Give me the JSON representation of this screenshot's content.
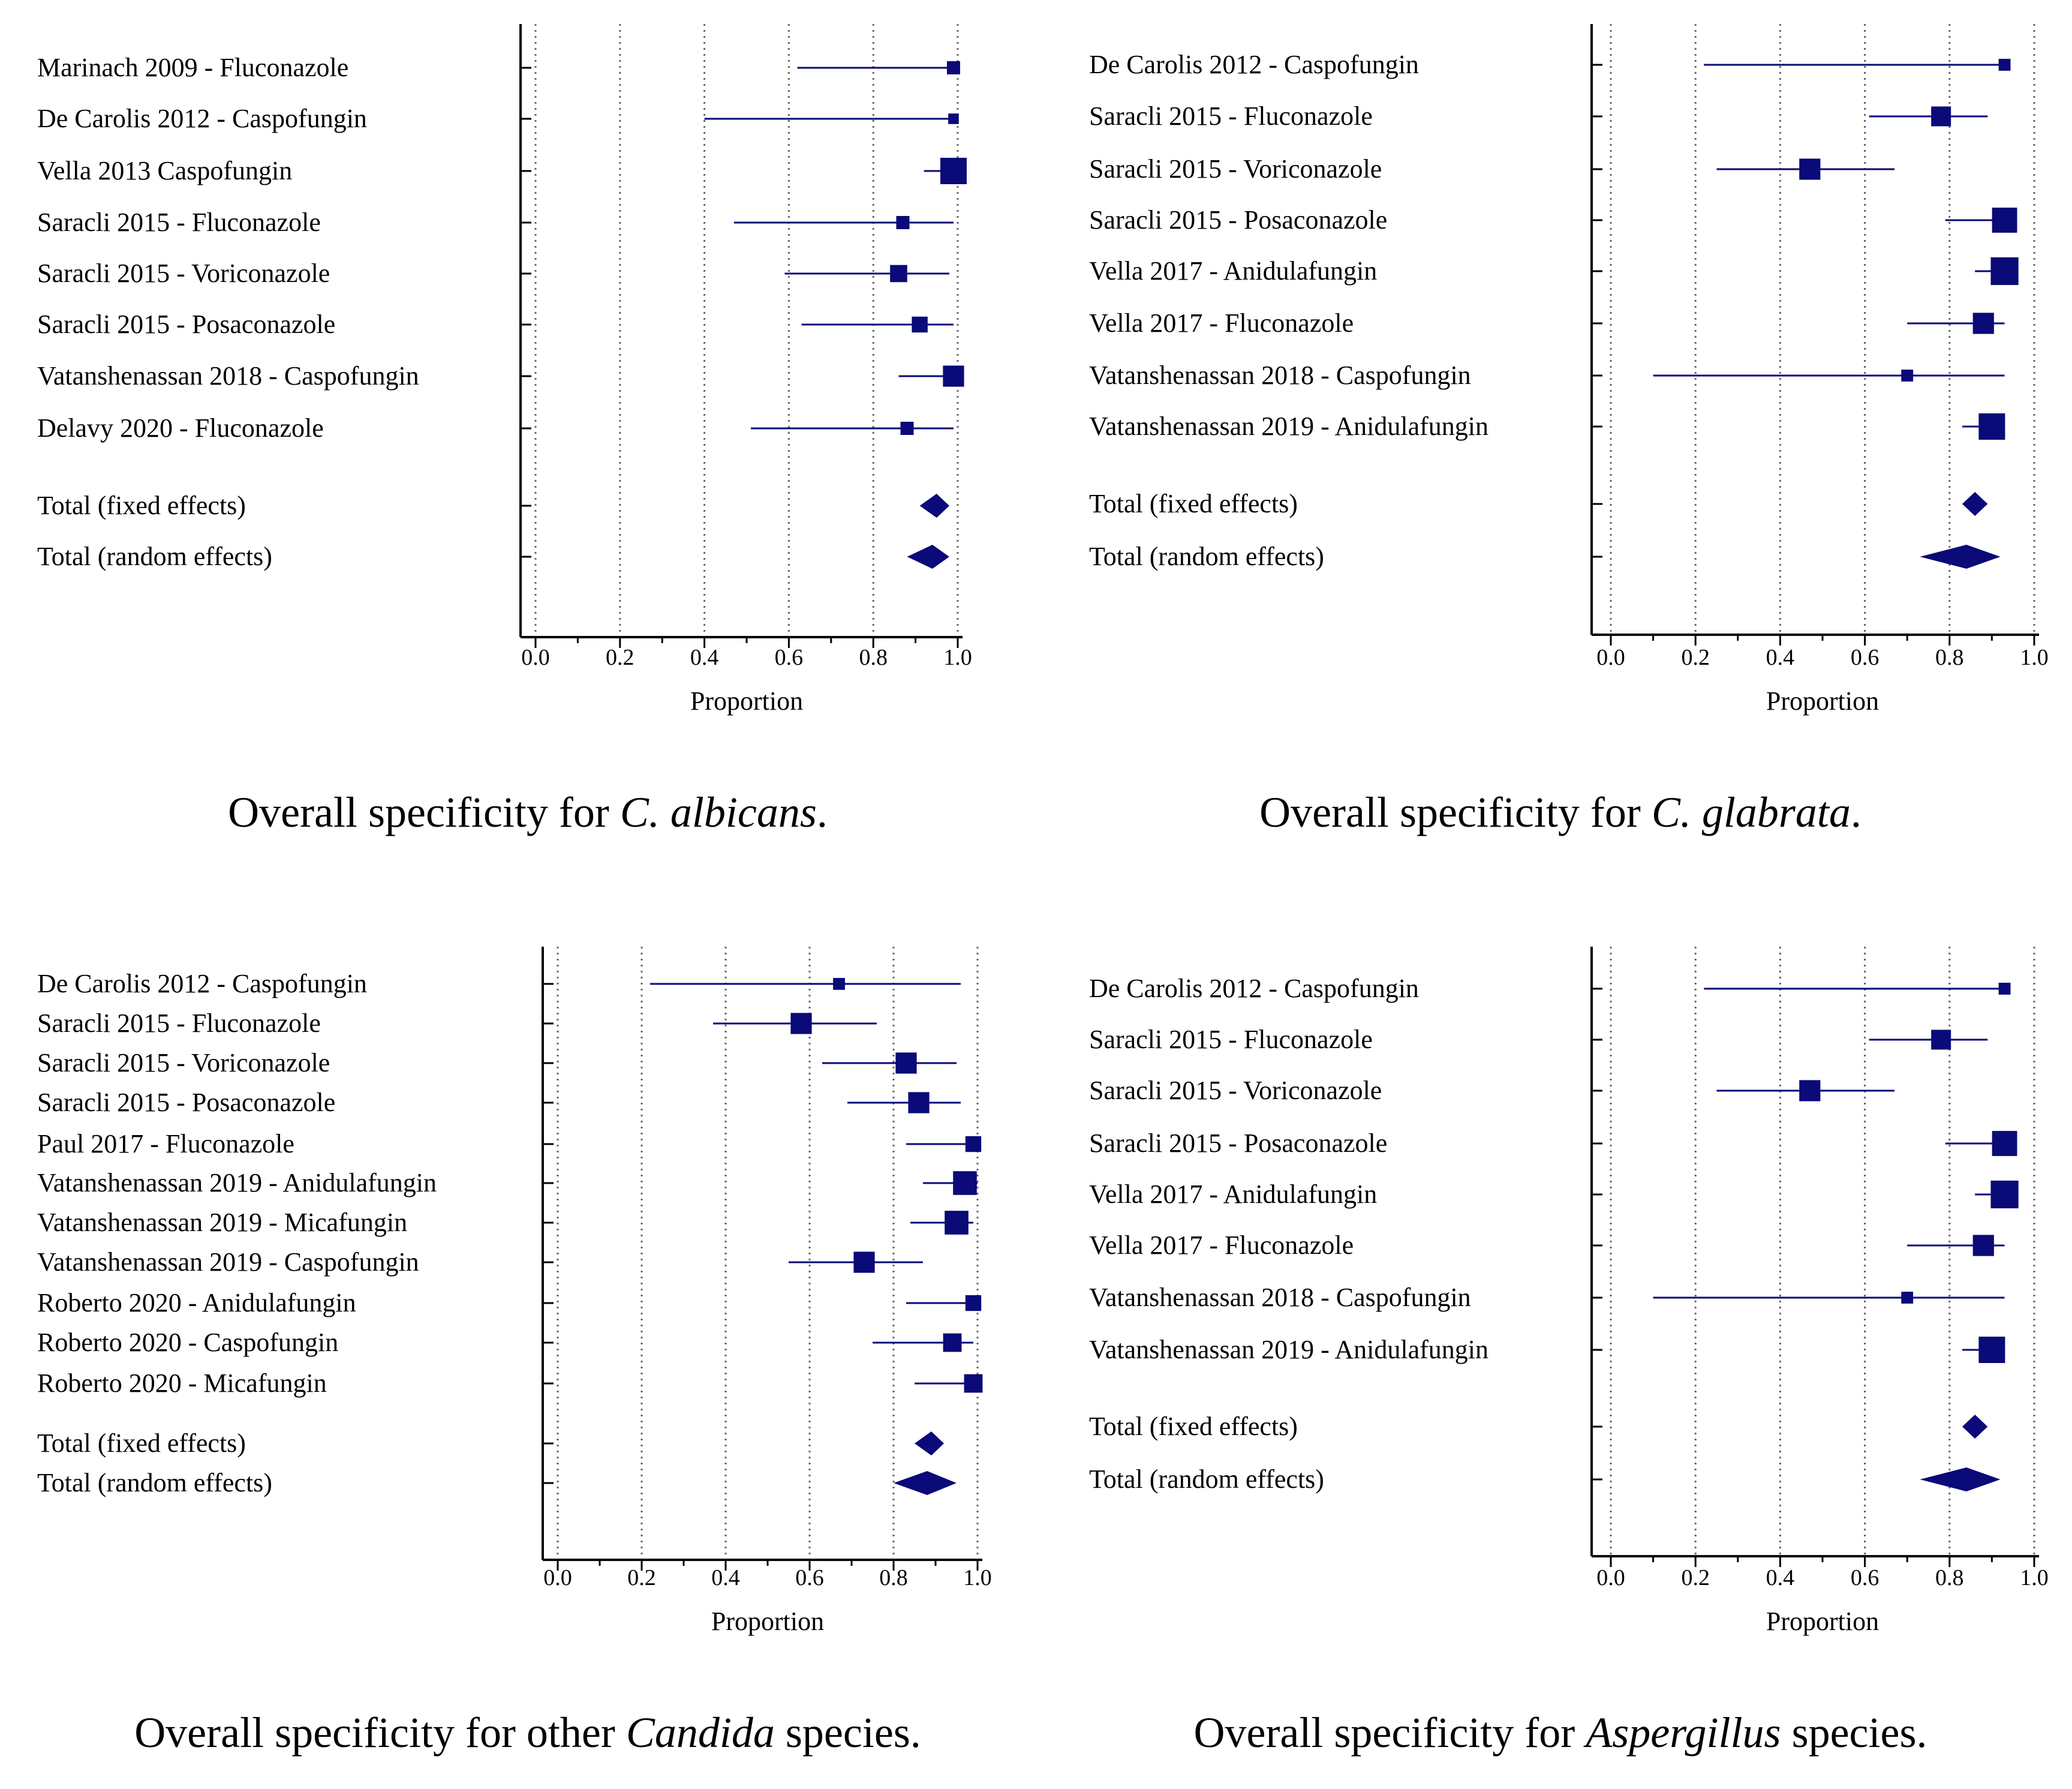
{
  "chart_data": [
    {
      "type": "forest",
      "xlabel": "Proportion",
      "xlim": [
        0.0,
        1.0
      ],
      "x_ticks": [
        "0.0",
        "0.2",
        "0.4",
        "0.6",
        "0.8",
        "1.0"
      ],
      "grid": "vertical dotted",
      "caption": {
        "prefix": "Overall specificity for ",
        "italic": "C. albicans",
        "suffix": "."
      },
      "studies": [
        {
          "label": "Marinach 2009 - Fluconazole",
          "est": 0.99,
          "lo": 0.62,
          "hi": 1.0,
          "weight": 1.0
        },
        {
          "label": "De Carolis 2012 - Caspofungin",
          "est": 0.99,
          "lo": 0.4,
          "hi": 1.0,
          "weight": 0.8
        },
        {
          "label": "Vella 2013 Caspofungin",
          "est": 0.99,
          "lo": 0.92,
          "hi": 1.0,
          "weight": 2.0
        },
        {
          "label": "Saracli 2015 - Fluconazole",
          "est": 0.87,
          "lo": 0.47,
          "hi": 0.99,
          "weight": 1.0
        },
        {
          "label": "Saracli 2015 - Voriconazole",
          "est": 0.86,
          "lo": 0.59,
          "hi": 0.98,
          "weight": 1.3
        },
        {
          "label": "Saracli 2015 - Posaconazole",
          "est": 0.91,
          "lo": 0.63,
          "hi": 0.99,
          "weight": 1.2
        },
        {
          "label": "Vatanshenassan 2018 - Caspofungin",
          "est": 0.99,
          "lo": 0.86,
          "hi": 1.0,
          "weight": 1.6
        },
        {
          "label": "Delavy 2020 - Fluconazole",
          "est": 0.88,
          "lo": 0.51,
          "hi": 0.99,
          "weight": 1.0
        }
      ],
      "totals": [
        {
          "label": "Total (fixed effects)",
          "est": 0.95,
          "lo": 0.91,
          "hi": 0.98
        },
        {
          "label": "Total (random effects)",
          "est": 0.94,
          "lo": 0.88,
          "hi": 0.98
        }
      ]
    },
    {
      "type": "forest",
      "xlabel": "Proportion",
      "xlim": [
        0.0,
        1.0
      ],
      "x_ticks": [
        "0.0",
        "0.2",
        "0.4",
        "0.6",
        "0.8",
        "1.0"
      ],
      "grid": "vertical dotted",
      "caption": {
        "prefix": "Overall specificity for ",
        "italic": "C. glabrata",
        "suffix": "."
      },
      "studies": [
        {
          "label": "De Carolis 2012 - Caspofungin",
          "est": 0.93,
          "lo": 0.22,
          "hi": 0.93,
          "weight": 0.9
        },
        {
          "label": "Saracli 2015 - Fluconazole",
          "est": 0.78,
          "lo": 0.61,
          "hi": 0.89,
          "weight": 1.5
        },
        {
          "label": "Saracli 2015 - Voriconazole",
          "est": 0.47,
          "lo": 0.25,
          "hi": 0.67,
          "weight": 1.6
        },
        {
          "label": "Saracli 2015 - Posaconazole",
          "est": 0.93,
          "lo": 0.79,
          "hi": 0.93,
          "weight": 1.9
        },
        {
          "label": "Vella 2017 - Anidulafungin",
          "est": 0.93,
          "lo": 0.86,
          "hi": 0.93,
          "weight": 2.1
        },
        {
          "label": "Vella 2017 - Fluconazole",
          "est": 0.88,
          "lo": 0.7,
          "hi": 0.93,
          "weight": 1.6
        },
        {
          "label": "Vatanshenassan 2018 - Caspofungin",
          "est": 0.7,
          "lo": 0.1,
          "hi": 0.93,
          "weight": 0.9
        },
        {
          "label": "Vatanshenassan 2019 - Anidulafungin",
          "est": 0.9,
          "lo": 0.83,
          "hi": 0.93,
          "weight": 2.0
        }
      ],
      "totals": [
        {
          "label": "Total (fixed effects)",
          "est": 0.86,
          "lo": 0.83,
          "hi": 0.89
        },
        {
          "label": "Total (random effects)",
          "est": 0.84,
          "lo": 0.73,
          "hi": 0.92
        }
      ]
    },
    {
      "type": "forest",
      "xlabel": "Proportion",
      "xlim": [
        0.0,
        1.0
      ],
      "x_ticks": [
        "0.0",
        "0.2",
        "0.4",
        "0.6",
        "0.8",
        "1.0"
      ],
      "grid": "vertical dotted",
      "caption": {
        "prefix": "Overall specificity for other ",
        "italic": "Candida",
        "suffix": " species."
      },
      "studies": [
        {
          "label": "De Carolis 2012 - Caspofungin",
          "est": 0.67,
          "lo": 0.22,
          "hi": 0.96,
          "weight": 0.9
        },
        {
          "label": "Saracli 2015 - Fluconazole",
          "est": 0.58,
          "lo": 0.37,
          "hi": 0.76,
          "weight": 1.6
        },
        {
          "label": "Saracli 2015 - Voriconazole",
          "est": 0.83,
          "lo": 0.63,
          "hi": 0.95,
          "weight": 1.6
        },
        {
          "label": "Saracli 2015 - Posaconazole",
          "est": 0.86,
          "lo": 0.69,
          "hi": 0.96,
          "weight": 1.6
        },
        {
          "label": "Paul 2017 - Fluconazole",
          "est": 0.99,
          "lo": 0.83,
          "hi": 1.0,
          "weight": 1.2
        },
        {
          "label": "Vatanshenassan 2019 - Anidulafungin",
          "est": 0.97,
          "lo": 0.87,
          "hi": 1.0,
          "weight": 1.8
        },
        {
          "label": "Vatanshenassan 2019 - Micafungin",
          "est": 0.95,
          "lo": 0.84,
          "hi": 0.99,
          "weight": 1.8
        },
        {
          "label": "Vatanshenassan 2019 - Caspofungin",
          "est": 0.73,
          "lo": 0.55,
          "hi": 0.87,
          "weight": 1.6
        },
        {
          "label": "Roberto 2020 - Anidulafungin",
          "est": 0.99,
          "lo": 0.83,
          "hi": 1.0,
          "weight": 1.2
        },
        {
          "label": "Roberto 2020 - Caspofungin",
          "est": 0.94,
          "lo": 0.75,
          "hi": 0.99,
          "weight": 1.4
        },
        {
          "label": "Roberto 2020 - Micafungin",
          "est": 0.99,
          "lo": 0.85,
          "hi": 1.0,
          "weight": 1.4
        }
      ],
      "totals": [
        {
          "label": "Total (fixed effects)",
          "est": 0.89,
          "lo": 0.85,
          "hi": 0.92
        },
        {
          "label": "Total (random effects)",
          "est": 0.88,
          "lo": 0.8,
          "hi": 0.95
        }
      ]
    },
    {
      "type": "forest",
      "xlabel": "Proportion",
      "xlim": [
        0.0,
        1.0
      ],
      "x_ticks": [
        "0.0",
        "0.2",
        "0.4",
        "0.6",
        "0.8",
        "1.0"
      ],
      "grid": "vertical dotted",
      "caption": {
        "prefix": "Overall specificity for ",
        "italic": "Aspergillus",
        "suffix": " species."
      },
      "studies": [
        {
          "label": "De Carolis 2012 - Caspofungin",
          "est": 0.93,
          "lo": 0.22,
          "hi": 0.93,
          "weight": 0.9
        },
        {
          "label": "Saracli 2015 - Fluconazole",
          "est": 0.78,
          "lo": 0.61,
          "hi": 0.89,
          "weight": 1.5
        },
        {
          "label": "Saracli 2015 - Voriconazole",
          "est": 0.47,
          "lo": 0.25,
          "hi": 0.67,
          "weight": 1.6
        },
        {
          "label": "Saracli 2015 - Posaconazole",
          "est": 0.93,
          "lo": 0.79,
          "hi": 0.93,
          "weight": 1.9
        },
        {
          "label": "Vella 2017 - Anidulafungin",
          "est": 0.93,
          "lo": 0.86,
          "hi": 0.93,
          "weight": 2.1
        },
        {
          "label": "Vella 2017 - Fluconazole",
          "est": 0.88,
          "lo": 0.7,
          "hi": 0.93,
          "weight": 1.6
        },
        {
          "label": "Vatanshenassan 2018 - Caspofungin",
          "est": 0.7,
          "lo": 0.1,
          "hi": 0.93,
          "weight": 0.9
        },
        {
          "label": "Vatanshenassan 2019 - Anidulafungin",
          "est": 0.9,
          "lo": 0.83,
          "hi": 0.93,
          "weight": 2.0
        }
      ],
      "totals": [
        {
          "label": "Total (fixed effects)",
          "est": 0.86,
          "lo": 0.83,
          "hi": 0.89
        },
        {
          "label": "Total (random effects)",
          "est": 0.84,
          "lo": 0.73,
          "hi": 0.92
        }
      ]
    }
  ],
  "colors": {
    "marker": "#0a0a78",
    "axis": "#000000",
    "grid": "#666666",
    "text": "#000000"
  }
}
